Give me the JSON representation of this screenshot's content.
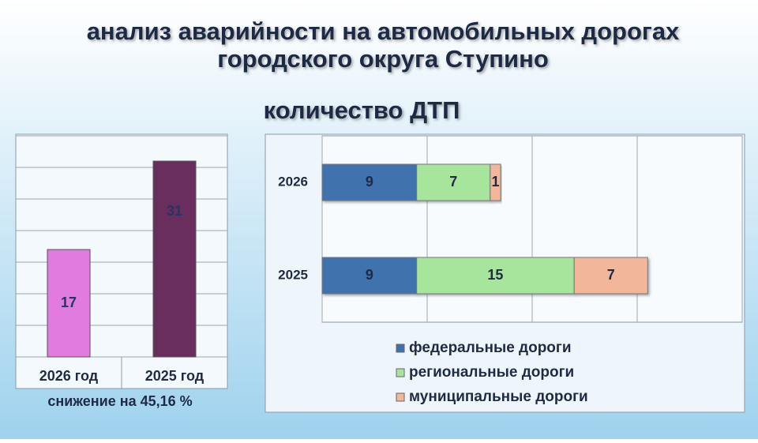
{
  "header": {
    "title_lines": [
      "анализ аварийности на автомобильных  дорогах",
      "городского округа Ступино"
    ],
    "subtitle": "количество ДТП"
  },
  "chart_data": [
    {
      "type": "bar",
      "categories": [
        "2026 год",
        "2025 год"
      ],
      "values": [
        17,
        31
      ],
      "colors": [
        "#e27be0",
        "#6a2e5e"
      ],
      "ylim": [
        0,
        35
      ],
      "yticks": [
        0,
        5,
        10,
        15,
        20,
        25,
        30,
        35
      ],
      "grid": true,
      "annotation": "снижение на 45,16 %"
    },
    {
      "type": "hbar-stacked",
      "categories": [
        "2026",
        "2025"
      ],
      "series": [
        {
          "name": "федеральные дороги",
          "color": "#3f72ad",
          "values": [
            9,
            9
          ]
        },
        {
          "name": "региональные дороги",
          "color": "#a8e59c",
          "values": [
            7,
            15
          ]
        },
        {
          "name": "муниципальные дороги",
          "color": "#f2b79b",
          "values": [
            1,
            7
          ]
        }
      ],
      "xlim": [
        0,
        40
      ],
      "xticks": [
        0,
        10,
        20,
        30,
        40
      ],
      "grid": true,
      "legend": "bottom"
    }
  ]
}
